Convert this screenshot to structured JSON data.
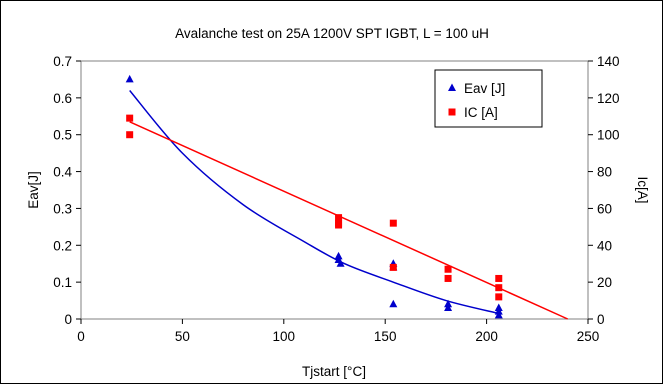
{
  "chart_data": {
    "type": "scatter",
    "title": "Avalanche test on 25A 1200V SPT IGBT, L = 100 uH",
    "xlabel": "Tjstart [°C]",
    "ylabel": "Eav[J]",
    "y2label": "Ic[A]",
    "xlim": [
      0,
      250
    ],
    "ylim": [
      0,
      0.7
    ],
    "y2lim": [
      0,
      140
    ],
    "x_ticks": [
      "0",
      "50",
      "100",
      "150",
      "200",
      "250"
    ],
    "y_ticks": [
      "0",
      "0.1",
      "0.2",
      "0.3",
      "0.4",
      "0.5",
      "0.6",
      "0.7"
    ],
    "y2_ticks": [
      "0",
      "20",
      "40",
      "60",
      "80",
      "100",
      "120",
      "140"
    ],
    "grid": false,
    "legend_position": "top-right",
    "series": [
      {
        "name": "Eav [J]",
        "axis": "left",
        "marker": "triangle",
        "color": "#0000cc",
        "points": [
          [
            24,
            0.65
          ],
          [
            127,
            0.17
          ],
          [
            127,
            0.16
          ],
          [
            128,
            0.15
          ],
          [
            154,
            0.15
          ],
          [
            154,
            0.14
          ],
          [
            154,
            0.04
          ],
          [
            181,
            0.04
          ],
          [
            181,
            0.03
          ],
          [
            206,
            0.03
          ],
          [
            206,
            0.02
          ],
          [
            206,
            0.01
          ]
        ],
        "trendline": [
          [
            24,
            0.62
          ],
          [
            50,
            0.45
          ],
          [
            80,
            0.31
          ],
          [
            110,
            0.21
          ],
          [
            130,
            0.15
          ],
          [
            154,
            0.1
          ],
          [
            180,
            0.05
          ],
          [
            206,
            0.015
          ]
        ]
      },
      {
        "name": "IC [A]",
        "axis": "right",
        "marker": "square",
        "color": "#ff0000",
        "points": [
          [
            24,
            109
          ],
          [
            24,
            100
          ],
          [
            127,
            55
          ],
          [
            127,
            52
          ],
          [
            127,
            51
          ],
          [
            154,
            52
          ],
          [
            154,
            28
          ],
          [
            181,
            27
          ],
          [
            181,
            22
          ],
          [
            206,
            22
          ],
          [
            206,
            17
          ],
          [
            206,
            12
          ]
        ],
        "trendline": [
          [
            24,
            107
          ],
          [
            240,
            0
          ]
        ]
      }
    ]
  }
}
